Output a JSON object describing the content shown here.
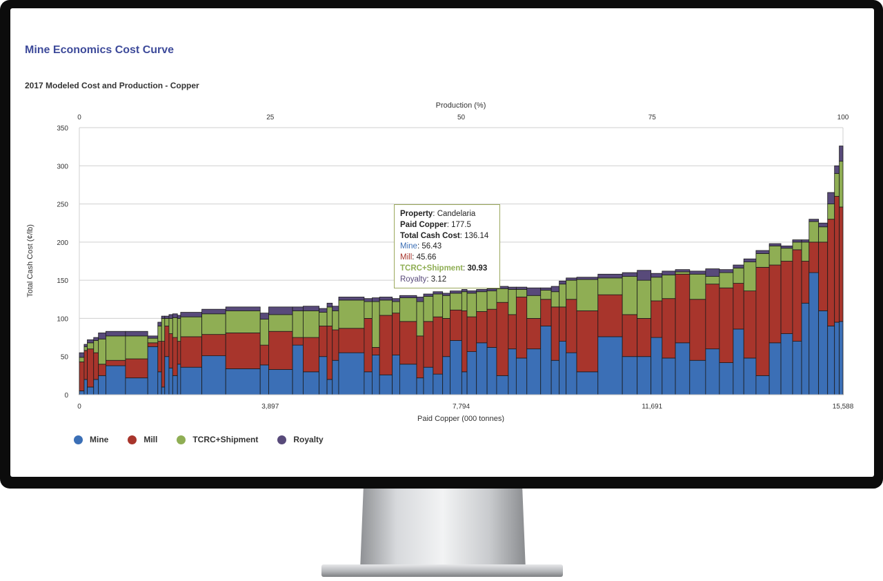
{
  "header": {
    "title": "Mine Economics Cost Curve",
    "subtitle": "2017 Modeled Cost and Production - Copper"
  },
  "legend": {
    "items": [
      {
        "label": "Mine",
        "color": "#3b6fb6"
      },
      {
        "label": "Mill",
        "color": "#a8352c"
      },
      {
        "label": "TCRC+Shipment",
        "color": "#8fae54"
      },
      {
        "label": "Royalty",
        "color": "#584a7a"
      }
    ]
  },
  "tooltip": {
    "property_label": "Property",
    "property_value": "Candelaria",
    "paid_copper_label": "Paid Copper",
    "paid_copper_value": "177.5",
    "total_cash_cost_label": "Total Cash Cost",
    "total_cash_cost_value": "136.14",
    "mine_label": "Mine",
    "mine_value": "56.43",
    "mill_label": "Mill",
    "mill_value": "45.66",
    "tcrc_label": "TCRC+Shipment",
    "tcrc_value": "30.93",
    "royalty_label": "Royalty",
    "royalty_value": "3.12"
  },
  "chart_data": {
    "type": "bar",
    "subtype": "stacked-variable-width-cost-curve",
    "title": "2017 Modeled Cost and Production - Copper",
    "xlabel": "Paid Copper (000 tonnes)",
    "x2label": "Production (%)",
    "ylabel": "Total Cash Cost (¢/lb)",
    "xlim": [
      0,
      15588
    ],
    "x2lim": [
      0,
      100
    ],
    "ylim": [
      0,
      350
    ],
    "x_ticks": [
      "0",
      "3,897",
      "7,794",
      "11,691",
      "15,588"
    ],
    "x2_ticks": [
      "0",
      "25",
      "50",
      "75",
      "100"
    ],
    "y_ticks": [
      "0",
      "50",
      "100",
      "150",
      "200",
      "250",
      "300",
      "350"
    ],
    "grid": true,
    "series_names": [
      "Mine",
      "Mill",
      "TCRC+Shipment",
      "Royalty"
    ],
    "colors": {
      "Mine": "#3b6fb6",
      "Mill": "#a8352c",
      "TCRC+Shipment": "#8fae54",
      "Royalty": "#584a7a"
    },
    "bars": [
      {
        "w": 90,
        "v": [
          5,
          38,
          6,
          6
        ]
      },
      {
        "w": 60,
        "v": [
          20,
          38,
          5,
          3
        ]
      },
      {
        "w": 120,
        "v": [
          10,
          50,
          8,
          4
        ]
      },
      {
        "w": 90,
        "v": [
          20,
          35,
          16,
          4
        ]
      },
      {
        "w": 140,
        "v": [
          25,
          15,
          33,
          8
        ]
      },
      {
        "w": 370,
        "v": [
          38,
          7,
          32,
          6
        ]
      },
      {
        "w": 420,
        "v": [
          22,
          25,
          30,
          6
        ]
      },
      {
        "w": 190,
        "v": [
          63,
          5,
          6,
          3
        ]
      },
      {
        "w": 70,
        "v": [
          30,
          40,
          20,
          5
        ]
      },
      {
        "w": 60,
        "v": [
          10,
          60,
          30,
          3
        ]
      },
      {
        "w": 80,
        "v": [
          50,
          40,
          10,
          3
        ]
      },
      {
        "w": 70,
        "v": [
          35,
          45,
          20,
          5
        ]
      },
      {
        "w": 90,
        "v": [
          25,
          50,
          26,
          5
        ]
      },
      {
        "w": 60,
        "v": [
          40,
          30,
          30,
          4
        ]
      },
      {
        "w": 400,
        "v": [
          36,
          40,
          26,
          6
        ]
      },
      {
        "w": 450,
        "v": [
          51,
          28,
          27,
          6
        ]
      },
      {
        "w": 650,
        "v": [
          34,
          47,
          29,
          5
        ]
      },
      {
        "w": 160,
        "v": [
          39,
          26,
          34,
          8
        ]
      },
      {
        "w": 450,
        "v": [
          33,
          50,
          22,
          10
        ]
      },
      {
        "w": 200,
        "v": [
          65,
          10,
          35,
          5
        ]
      },
      {
        "w": 300,
        "v": [
          30,
          45,
          35,
          6
        ]
      },
      {
        "w": 150,
        "v": [
          50,
          40,
          18,
          5
        ]
      },
      {
        "w": 100,
        "v": [
          20,
          70,
          25,
          5
        ]
      },
      {
        "w": 120,
        "v": [
          45,
          40,
          25,
          6
        ]
      },
      {
        "w": 480,
        "v": [
          55,
          32,
          37,
          4
        ]
      },
      {
        "w": 150,
        "v": [
          30,
          70,
          22,
          4
        ]
      },
      {
        "w": 140,
        "v": [
          52,
          10,
          60,
          5
        ]
      },
      {
        "w": 240,
        "v": [
          26,
          78,
          20,
          4
        ]
      },
      {
        "w": 140,
        "v": [
          52,
          55,
          15,
          4
        ]
      },
      {
        "w": 320,
        "v": [
          40,
          56,
          31,
          3
        ]
      },
      {
        "w": 130,
        "v": [
          22,
          55,
          45,
          6
        ]
      },
      {
        "w": 180,
        "v": [
          36,
          60,
          33,
          3
        ]
      },
      {
        "w": 180,
        "v": [
          27,
          75,
          30,
          3
        ]
      },
      {
        "w": 140,
        "v": [
          50,
          50,
          30,
          3
        ]
      },
      {
        "w": 220,
        "v": [
          71,
          40,
          22,
          3
        ]
      },
      {
        "w": 100,
        "v": [
          30,
          80,
          25,
          3
        ]
      },
      {
        "w": 177.5,
        "v": [
          56.43,
          45.66,
          30.93,
          3.12
        ]
      },
      {
        "w": 200,
        "v": [
          68,
          41,
          26,
          3
        ]
      },
      {
        "w": 180,
        "v": [
          62,
          50,
          24,
          3
        ]
      },
      {
        "w": 220,
        "v": [
          25,
          96,
          18,
          3
        ]
      },
      {
        "w": 150,
        "v": [
          60,
          45,
          33,
          3
        ]
      },
      {
        "w": 200,
        "v": [
          48,
          80,
          10,
          3
        ]
      },
      {
        "w": 260,
        "v": [
          60,
          40,
          30,
          10
        ]
      },
      {
        "w": 200,
        "v": [
          90,
          35,
          12,
          3
        ]
      },
      {
        "w": 150,
        "v": [
          45,
          70,
          20,
          7
        ]
      },
      {
        "w": 130,
        "v": [
          70,
          45,
          30,
          4
        ]
      },
      {
        "w": 200,
        "v": [
          55,
          70,
          25,
          3
        ]
      },
      {
        "w": 400,
        "v": [
          30,
          80,
          41,
          3
        ]
      },
      {
        "w": 460,
        "v": [
          76,
          55,
          22,
          5
        ]
      },
      {
        "w": 280,
        "v": [
          50,
          55,
          50,
          5
        ]
      },
      {
        "w": 260,
        "v": [
          50,
          50,
          50,
          13
        ]
      },
      {
        "w": 210,
        "v": [
          75,
          48,
          31,
          5
        ]
      },
      {
        "w": 250,
        "v": [
          48,
          78,
          31,
          5
        ]
      },
      {
        "w": 270,
        "v": [
          68,
          90,
          3,
          3
        ]
      },
      {
        "w": 300,
        "v": [
          45,
          80,
          33,
          4
        ]
      },
      {
        "w": 260,
        "v": [
          60,
          85,
          10,
          10
        ]
      },
      {
        "w": 260,
        "v": [
          42,
          98,
          20,
          4
        ]
      },
      {
        "w": 200,
        "v": [
          86,
          60,
          20,
          4
        ]
      },
      {
        "w": 230,
        "v": [
          48,
          88,
          38,
          4
        ]
      },
      {
        "w": 250,
        "v": [
          25,
          142,
          18,
          4
        ]
      },
      {
        "w": 220,
        "v": [
          68,
          102,
          25,
          3
        ]
      },
      {
        "w": 220,
        "v": [
          80,
          95,
          17,
          3
        ]
      },
      {
        "w": 170,
        "v": [
          70,
          120,
          10,
          3
        ]
      },
      {
        "w": 140,
        "v": [
          120,
          55,
          25,
          3
        ]
      },
      {
        "w": 180,
        "v": [
          160,
          40,
          27,
          3
        ]
      },
      {
        "w": 170,
        "v": [
          110,
          90,
          20,
          5
        ]
      },
      {
        "w": 130,
        "v": [
          90,
          140,
          20,
          15
        ]
      },
      {
        "w": 90,
        "v": [
          95,
          165,
          30,
          10
        ]
      },
      {
        "w": 70,
        "v": [
          96,
          150,
          60,
          20
        ]
      }
    ]
  }
}
